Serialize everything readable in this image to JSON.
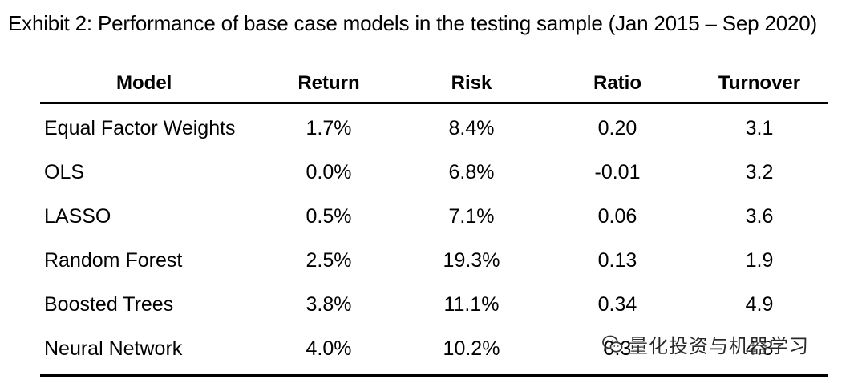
{
  "title": "Exhibit 2: Performance of base case models in the testing sample (Jan 2015 – Sep 2020)",
  "table": {
    "headers": [
      "Model",
      "Return",
      "Risk",
      "Ratio",
      "Turnover"
    ],
    "rows": [
      [
        "Equal Factor Weights",
        "1.7%",
        "8.4%",
        "0.20",
        "3.1"
      ],
      [
        "OLS",
        "0.0%",
        "6.8%",
        "-0.01",
        "3.2"
      ],
      [
        "LASSO",
        "0.5%",
        "7.1%",
        "0.06",
        "3.6"
      ],
      [
        "Random Forest",
        "2.5%",
        "19.3%",
        "0.13",
        "1.9"
      ],
      [
        "Boosted Trees",
        "3.8%",
        "11.1%",
        "0.34",
        "4.9"
      ],
      [
        "Neural Network",
        "4.0%",
        "10.2%",
        "0.3",
        "4.8"
      ]
    ]
  },
  "watermark": {
    "text": "量化投资与机器学习",
    "icon": "wechat-icon"
  }
}
